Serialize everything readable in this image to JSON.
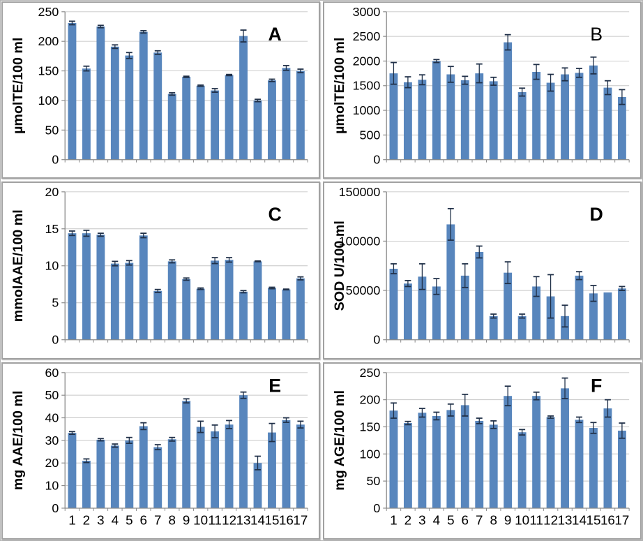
{
  "figure": {
    "description": "Six-panel bar chart figure, panels labelled A-F, 17 samples each, with error bars",
    "layout": "2 columns x 3 rows, x tick labels shown only on bottom row"
  },
  "colors": {
    "bar": "#5886BD",
    "error_bar": "#203048",
    "gridline": "#c6c6c6",
    "axis": "#8a8a8a",
    "text": "#000000",
    "panel_border": "#a1a1a1"
  },
  "chart_data": [
    {
      "type": "bar",
      "panel_letter": "A",
      "panel_letter_bold": true,
      "ylabel": "µmolTE/100 ml",
      "ylim": [
        0,
        250
      ],
      "yticks": [
        0,
        50,
        100,
        150,
        200,
        250
      ],
      "categories": [
        "1",
        "2",
        "3",
        "4",
        "5",
        "6",
        "7",
        "8",
        "9",
        "10",
        "11",
        "12",
        "13",
        "14",
        "15",
        "16",
        "17"
      ],
      "values": [
        231,
        154,
        225,
        191,
        176,
        216,
        181,
        111,
        140,
        125,
        117,
        143,
        209,
        100,
        134,
        155,
        150
      ],
      "errors": [
        3,
        4,
        2,
        3,
        5,
        2,
        3,
        2,
        1,
        1,
        3,
        1,
        10,
        2,
        2,
        4,
        3
      ],
      "show_x_labels": false,
      "grid": true,
      "legend": null
    },
    {
      "type": "bar",
      "panel_letter": "B",
      "panel_letter_bold": false,
      "ylabel": "µmolTE/100 ml",
      "ylim": [
        0,
        3000
      ],
      "yticks": [
        0,
        500,
        1000,
        1500,
        2000,
        2500,
        3000
      ],
      "categories": [
        "1",
        "2",
        "3",
        "4",
        "5",
        "6",
        "7",
        "8",
        "9",
        "10",
        "11",
        "12",
        "13",
        "14",
        "15",
        "16",
        "17"
      ],
      "values": [
        1750,
        1570,
        1620,
        2000,
        1730,
        1610,
        1750,
        1590,
        2380,
        1370,
        1780,
        1560,
        1730,
        1760,
        1910,
        1460,
        1270
      ],
      "errors": [
        220,
        110,
        100,
        30,
        160,
        80,
        190,
        80,
        155,
        80,
        150,
        170,
        130,
        90,
        170,
        140,
        150
      ],
      "show_x_labels": false,
      "grid": true,
      "legend": null
    },
    {
      "type": "bar",
      "panel_letter": "C",
      "panel_letter_bold": true,
      "ylabel": "mmolAAE/100 ml",
      "ylim": [
        0,
        20
      ],
      "yticks": [
        0,
        5,
        10,
        15,
        20
      ],
      "categories": [
        "1",
        "2",
        "3",
        "4",
        "5",
        "6",
        "7",
        "8",
        "9",
        "10",
        "11",
        "12",
        "13",
        "14",
        "15",
        "16",
        "17"
      ],
      "values": [
        14.4,
        14.4,
        14.2,
        10.3,
        10.4,
        14.1,
        6.6,
        10.6,
        8.2,
        6.9,
        10.7,
        10.8,
        6.5,
        10.6,
        7.0,
        6.8,
        8.3
      ],
      "errors": [
        0.3,
        0.4,
        0.2,
        0.3,
        0.3,
        0.3,
        0.2,
        0.2,
        0.15,
        0.1,
        0.4,
        0.3,
        0.15,
        0.05,
        0.1,
        0.05,
        0.2
      ],
      "show_x_labels": false,
      "grid": true,
      "legend": null
    },
    {
      "type": "bar",
      "panel_letter": "D",
      "panel_letter_bold": true,
      "ylabel": "SOD U/100 ml",
      "ylim": [
        0,
        150000
      ],
      "yticks": [
        0,
        50000,
        100000,
        150000
      ],
      "categories": [
        "1",
        "2",
        "3",
        "4",
        "5",
        "6",
        "7",
        "8",
        "9",
        "10",
        "11",
        "12",
        "13",
        "14",
        "15",
        "16",
        "17"
      ],
      "values": [
        72000,
        57000,
        64000,
        54000,
        117000,
        65000,
        89000,
        24000,
        68000,
        24000,
        54000,
        44000,
        24000,
        65000,
        47000,
        48000,
        52000
      ],
      "errors": [
        5000,
        3000,
        13000,
        8000,
        16000,
        12000,
        6000,
        2000,
        11000,
        2000,
        10000,
        22000,
        11000,
        4000,
        8000,
        0,
        2000
      ],
      "show_x_labels": false,
      "grid": true,
      "legend": null
    },
    {
      "type": "bar",
      "panel_letter": "E",
      "panel_letter_bold": true,
      "ylabel": "mg AAE/100 ml",
      "ylim": [
        0,
        60
      ],
      "yticks": [
        0,
        10,
        20,
        30,
        40,
        50,
        60
      ],
      "categories": [
        "1",
        "2",
        "3",
        "4",
        "5",
        "6",
        "7",
        "8",
        "9",
        "10",
        "11",
        "12",
        "13",
        "14",
        "15",
        "16",
        "17"
      ],
      "values": [
        33.3,
        21,
        30.3,
        27.7,
        30,
        36.3,
        27,
        30.5,
        47.5,
        36,
        34,
        37,
        50,
        20,
        33.5,
        39,
        37
      ],
      "errors": [
        0.6,
        0.8,
        0.5,
        0.7,
        1.3,
        1.5,
        1.1,
        0.8,
        0.9,
        2.5,
        2.8,
        1.8,
        1.4,
        3,
        4,
        1,
        1.5
      ],
      "show_x_labels": true,
      "grid": true,
      "legend": null
    },
    {
      "type": "bar",
      "panel_letter": "F",
      "panel_letter_bold": true,
      "ylabel": "mg AGE/100 ml",
      "ylim": [
        0,
        250
      ],
      "yticks": [
        0,
        50,
        100,
        150,
        200,
        250
      ],
      "categories": [
        "1",
        "2",
        "3",
        "4",
        "5",
        "6",
        "7",
        "8",
        "9",
        "10",
        "11",
        "12",
        "13",
        "14",
        "15",
        "16",
        "17"
      ],
      "values": [
        180,
        157,
        176,
        170,
        181,
        190,
        161,
        154,
        207,
        140,
        207,
        168,
        221,
        163,
        148,
        184,
        143
      ],
      "errors": [
        14,
        3,
        8,
        7,
        11,
        20,
        5,
        7,
        18,
        5,
        7,
        2,
        19,
        5,
        10,
        16,
        14
      ],
      "show_x_labels": true,
      "grid": true,
      "legend": null
    }
  ]
}
